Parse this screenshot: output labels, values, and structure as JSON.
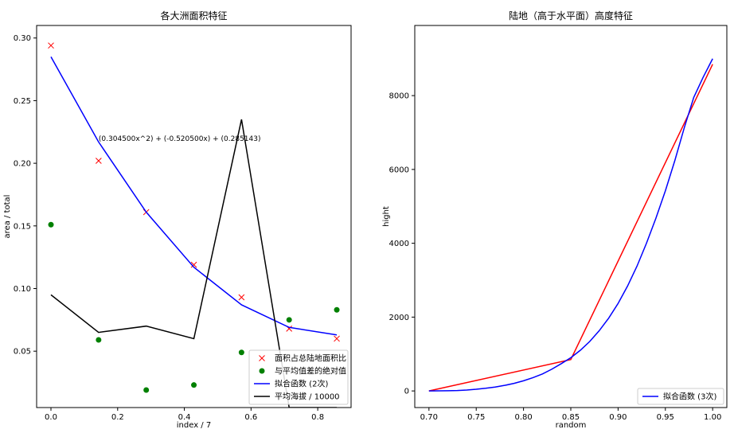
{
  "chart_data": [
    {
      "type": "line",
      "title": "各大洲面积特征",
      "xlabel": "index / 7",
      "ylabel": "area / total",
      "xlim": [
        -0.043,
        0.9
      ],
      "ylim": [
        0.005,
        0.31
      ],
      "xticks": [
        0.0,
        0.2,
        0.4,
        0.6,
        0.8
      ],
      "xtick_labels": [
        "0.0",
        "0.2",
        "0.4",
        "0.6",
        "0.8"
      ],
      "yticks": [
        0.05,
        0.1,
        0.15,
        0.2,
        0.25,
        0.3
      ],
      "ytick_labels": [
        "0.05",
        "0.10",
        "0.15",
        "0.20",
        "0.25",
        "0.30"
      ],
      "legend_position": "lower-right",
      "annotation": "(0.304500x^2) + (-0.520500x) + (0.285143)",
      "annotation_at": [
        0.143,
        0.218
      ],
      "series": [
        {
          "name": "面积占总陆地面积比",
          "kind": "marker-x",
          "color": "#ff0000",
          "x": [
            0.0,
            0.142857,
            0.285714,
            0.428571,
            0.571429,
            0.714286,
            0.857143
          ],
          "y": [
            0.294,
            0.202,
            0.161,
            0.119,
            0.093,
            0.068,
            0.06
          ]
        },
        {
          "name": "与平均值差的绝对值",
          "kind": "marker-dot",
          "color": "#008000",
          "x": [
            0.0,
            0.142857,
            0.285714,
            0.428571,
            0.571429,
            0.714286,
            0.857143
          ],
          "y": [
            0.151,
            0.059,
            0.019,
            0.023,
            0.049,
            0.075,
            0.083
          ]
        },
        {
          "name": "拟合函数 (2次)",
          "kind": "line",
          "color": "#0000ff",
          "x": [
            0.0,
            0.142857,
            0.285714,
            0.428571,
            0.571429,
            0.714286,
            0.857143
          ],
          "y": [
            0.285,
            0.217,
            0.161,
            0.117,
            0.087,
            0.069,
            0.063
          ]
        },
        {
          "name": "平均海拔 / 10000",
          "kind": "line",
          "color": "#000000",
          "x": [
            0.0,
            0.142857,
            0.285714,
            0.428571,
            0.571429,
            0.714286,
            0.857143
          ],
          "y": [
            0.095,
            0.065,
            0.07,
            0.06,
            0.235,
            0.005,
            0.005
          ]
        }
      ]
    },
    {
      "type": "line",
      "title": "陆地（高于水平面）高度特征",
      "xlabel": "random",
      "ylabel": "hight",
      "xlim": [
        0.685,
        1.015
      ],
      "ylim": [
        -450,
        9900
      ],
      "xticks": [
        0.7,
        0.75,
        0.8,
        0.85,
        0.9,
        0.95,
        1.0
      ],
      "xtick_labels": [
        "0.70",
        "0.75",
        "0.80",
        "0.85",
        "0.90",
        "0.95",
        "1.00"
      ],
      "yticks": [
        0,
        2000,
        4000,
        6000,
        8000
      ],
      "ytick_labels": [
        "0",
        "2000",
        "4000",
        "6000",
        "8000"
      ],
      "legend_position": "lower-right",
      "series": [
        {
          "name": "",
          "kind": "line",
          "color": "#ff0000",
          "x": [
            0.7,
            0.85,
            1.0
          ],
          "y": [
            0,
            850,
            8850
          ]
        },
        {
          "name": "拟合函数 (3次)",
          "kind": "line",
          "color": "#0000ff",
          "x": [
            0.7,
            0.71,
            0.72,
            0.73,
            0.74,
            0.75,
            0.76,
            0.77,
            0.78,
            0.79,
            0.8,
            0.81,
            0.82,
            0.83,
            0.84,
            0.85,
            0.86,
            0.87,
            0.88,
            0.89,
            0.9,
            0.91,
            0.92,
            0.93,
            0.94,
            0.95,
            0.96,
            0.97,
            0.98,
            0.99,
            1.0
          ],
          "y": [
            0,
            2,
            6,
            12,
            25,
            45,
            72,
            105,
            150,
            205,
            275,
            360,
            460,
            590,
            740,
            900,
            1100,
            1340,
            1630,
            1970,
            2370,
            2840,
            3380,
            4000,
            4680,
            5420,
            6240,
            7130,
            7950,
            8500,
            9000
          ]
        }
      ]
    }
  ]
}
